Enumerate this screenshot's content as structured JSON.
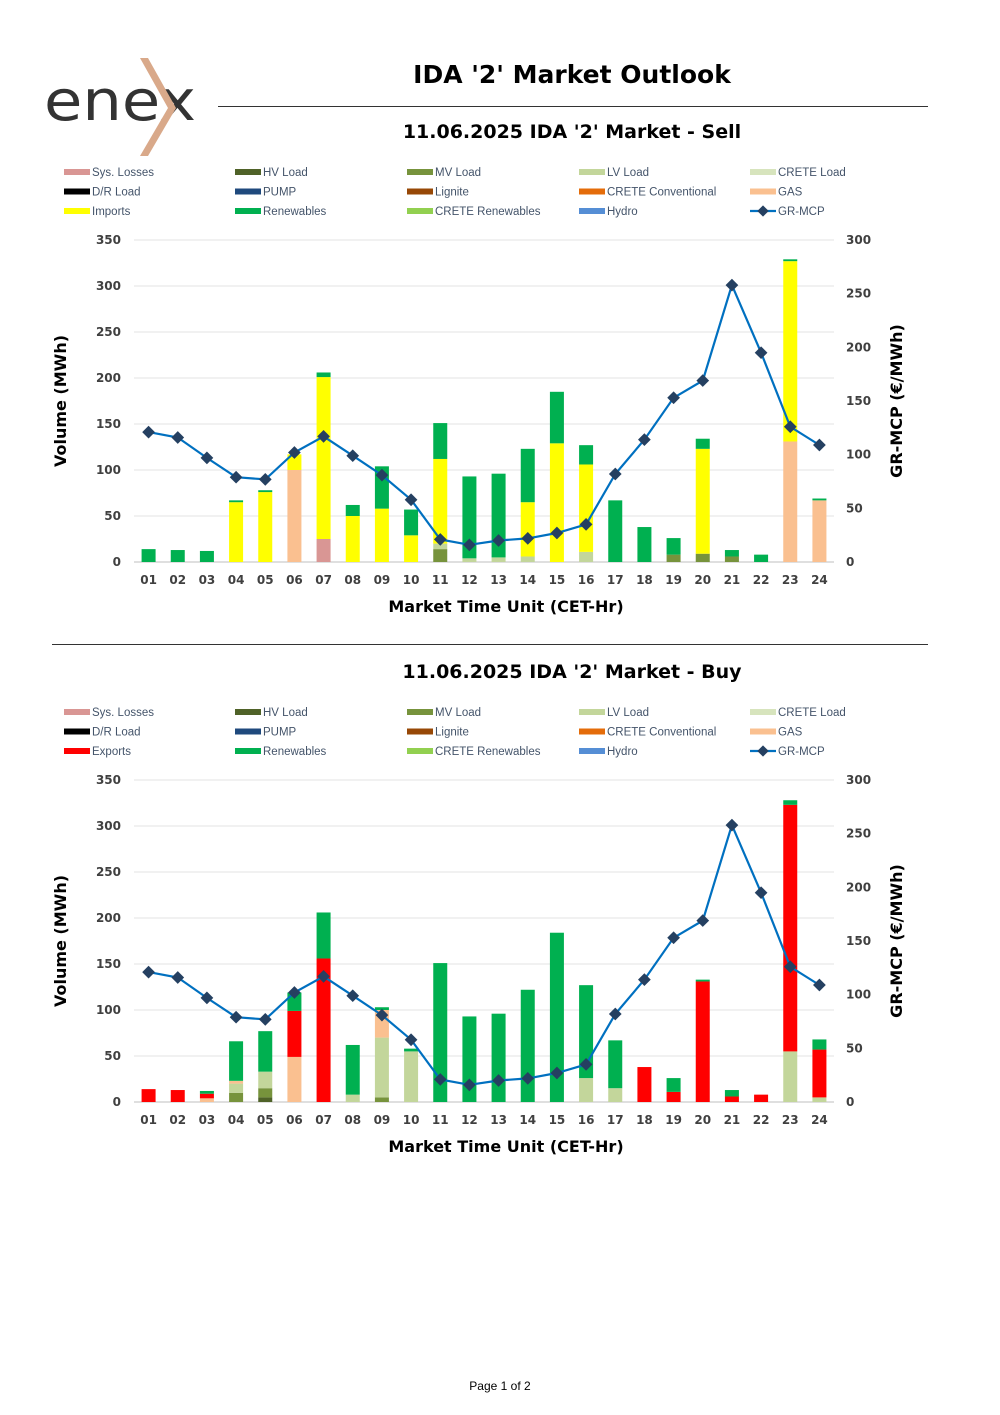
{
  "logo_text": "enex",
  "page_title": "IDA '2' Market Outlook",
  "footer": "Page 1 of 2",
  "colors": {
    "Sys. Losses": "#d99694",
    "HV Load": "#4f6228",
    "MV Load": "#77933c",
    "LV Load": "#c3d69b",
    "CRETE Load": "#d7e4bd",
    "D/R Load": "#000000",
    "PUMP": "#1f497d",
    "Lignite": "#974806",
    "CRETE Conventional": "#e46c0a",
    "GAS": "#fac090",
    "Imports": "#ffff00",
    "Exports": "#ff0000",
    "Renewables": "#00b050",
    "CRETE Renewables": "#92d050",
    "Hydro": "#558ed5",
    "GR-MCP": "#0070c0",
    "GR-MCP-marker": "#254061"
  },
  "chart_data": [
    {
      "type": "bar",
      "title": "11.06.2025  IDA '2' Market - Sell",
      "xlabel": "Market Time Unit (CET-Hr)",
      "ylabel": "Volume (MWh)",
      "y2label": "GR-MCP (€/MWh)",
      "ylim": [
        0,
        350
      ],
      "y2lim": [
        0,
        300
      ],
      "yticks": [
        0,
        50,
        100,
        150,
        200,
        250,
        300,
        350
      ],
      "y2ticks": [
        0,
        50,
        100,
        150,
        200,
        250,
        300
      ],
      "legend": [
        "Sys. Losses",
        "HV Load",
        "MV Load",
        "LV Load",
        "CRETE Load",
        "D/R Load",
        "PUMP",
        "Lignite",
        "CRETE Conventional",
        "GAS",
        "Imports",
        "Renewables",
        "CRETE Renewables",
        "Hydro",
        "GR-MCP"
      ],
      "categories": [
        "01",
        "02",
        "03",
        "04",
        "05",
        "06",
        "07",
        "08",
        "09",
        "10",
        "11",
        "12",
        "13",
        "14",
        "15",
        "16",
        "17",
        "18",
        "19",
        "20",
        "21",
        "22",
        "23",
        "24"
      ],
      "series": [
        {
          "name": "Sys. Losses",
          "values": [
            0,
            0,
            0,
            0,
            0,
            0,
            25,
            0,
            0,
            0,
            0,
            0,
            0,
            0,
            0,
            0,
            0,
            0,
            0,
            0,
            0,
            0,
            0,
            0
          ]
        },
        {
          "name": "MV Load",
          "values": [
            0,
            0,
            0,
            0,
            0,
            0,
            0,
            0,
            0,
            0,
            14,
            0,
            0,
            0,
            0,
            0,
            0,
            0,
            8,
            9,
            6,
            0,
            0,
            0
          ]
        },
        {
          "name": "LV Load",
          "values": [
            0,
            0,
            0,
            0,
            0,
            0,
            0,
            0,
            0,
            0,
            6,
            4,
            5,
            6,
            0,
            11,
            0,
            0,
            0,
            0,
            0,
            0,
            0,
            0
          ]
        },
        {
          "name": "GAS",
          "values": [
            0,
            0,
            0,
            0,
            0,
            100,
            0,
            0,
            0,
            0,
            0,
            0,
            0,
            0,
            0,
            0,
            0,
            0,
            0,
            0,
            0,
            0,
            131,
            67
          ]
        },
        {
          "name": "Imports",
          "values": [
            0,
            0,
            0,
            65,
            76,
            17,
            176,
            50,
            58,
            29,
            92,
            0,
            0,
            59,
            129,
            95,
            0,
            0,
            0,
            114,
            0,
            0,
            196,
            0
          ]
        },
        {
          "name": "Renewables",
          "values": [
            14,
            13,
            12,
            2,
            2,
            0,
            5,
            12,
            46,
            28,
            39,
            89,
            91,
            58,
            56,
            21,
            67,
            38,
            18,
            11,
            7,
            8,
            2,
            2
          ]
        }
      ],
      "line": {
        "name": "GR-MCP",
        "values": [
          121,
          116,
          97,
          79,
          77,
          102,
          117,
          99,
          81,
          58,
          21,
          16,
          20,
          22,
          27,
          35,
          82,
          114,
          153,
          169,
          258,
          195,
          126,
          109
        ]
      }
    },
    {
      "type": "bar",
      "title": "11.06.2025  IDA '2' Market - Buy",
      "xlabel": "Market Time Unit (CET-Hr)",
      "ylabel": "Volume (MWh)",
      "y2label": "GR-MCP (€/MWh)",
      "ylim": [
        0,
        350
      ],
      "y2lim": [
        0,
        300
      ],
      "yticks": [
        0,
        50,
        100,
        150,
        200,
        250,
        300,
        350
      ],
      "y2ticks": [
        0,
        50,
        100,
        150,
        200,
        250,
        300
      ],
      "legend": [
        "Sys. Losses",
        "HV Load",
        "MV Load",
        "LV Load",
        "CRETE Load",
        "D/R Load",
        "PUMP",
        "Lignite",
        "CRETE Conventional",
        "GAS",
        "Exports",
        "Renewables",
        "CRETE Renewables",
        "Hydro",
        "GR-MCP"
      ],
      "categories": [
        "01",
        "02",
        "03",
        "04",
        "05",
        "06",
        "07",
        "08",
        "09",
        "10",
        "11",
        "12",
        "13",
        "14",
        "15",
        "16",
        "17",
        "18",
        "19",
        "20",
        "21",
        "22",
        "23",
        "24"
      ],
      "series": [
        {
          "name": "HV Load",
          "values": [
            0,
            0,
            0,
            0,
            5,
            0,
            0,
            0,
            0,
            0,
            0,
            0,
            0,
            0,
            0,
            0,
            0,
            0,
            0,
            0,
            0,
            0,
            0,
            0
          ]
        },
        {
          "name": "MV Load",
          "values": [
            0,
            0,
            0,
            10,
            10,
            0,
            0,
            0,
            5,
            0,
            0,
            0,
            0,
            0,
            0,
            0,
            0,
            0,
            0,
            0,
            0,
            0,
            0,
            0
          ]
        },
        {
          "name": "LV Load",
          "values": [
            0,
            0,
            0,
            10,
            18,
            0,
            0,
            8,
            65,
            55,
            0,
            0,
            0,
            0,
            0,
            26,
            15,
            0,
            0,
            0,
            0,
            0,
            55,
            5
          ]
        },
        {
          "name": "GAS",
          "values": [
            0,
            0,
            4,
            3,
            0,
            49,
            0,
            0,
            30,
            0,
            0,
            0,
            0,
            0,
            0,
            0,
            0,
            0,
            0,
            0,
            0,
            0,
            0,
            0
          ]
        },
        {
          "name": "Exports",
          "values": [
            14,
            13,
            5,
            0,
            0,
            50,
            156,
            0,
            0,
            0,
            0,
            0,
            0,
            0,
            0,
            0,
            0,
            38,
            11,
            131,
            6,
            8,
            268,
            52
          ]
        },
        {
          "name": "Renewables",
          "values": [
            0,
            0,
            3,
            43,
            44,
            20,
            50,
            54,
            3,
            3,
            151,
            93,
            96,
            122,
            184,
            101,
            52,
            0,
            15,
            2,
            7,
            0,
            5,
            11
          ]
        }
      ],
      "line": {
        "name": "GR-MCP",
        "values": [
          121,
          116,
          97,
          79,
          77,
          102,
          117,
          99,
          81,
          58,
          21,
          16,
          20,
          22,
          27,
          35,
          82,
          114,
          153,
          169,
          258,
          195,
          126,
          109
        ]
      }
    }
  ]
}
